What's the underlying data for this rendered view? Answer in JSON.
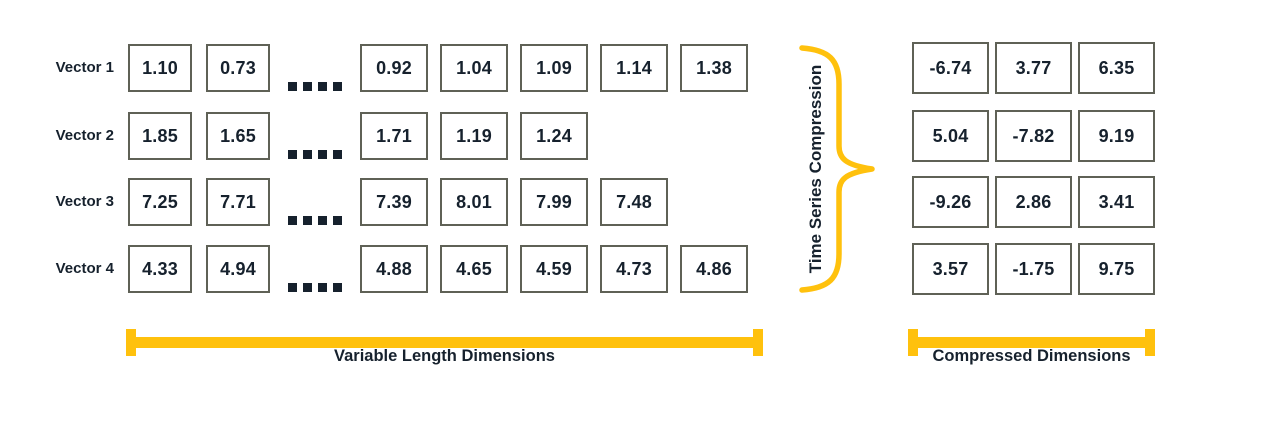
{
  "diagram": {
    "vectors": [
      {
        "label": "Vector 1",
        "head": [
          "1.10",
          "0.73"
        ],
        "tail": [
          "0.92",
          "1.04",
          "1.09",
          "1.14",
          "1.38"
        ],
        "compressed": [
          "-6.74",
          "3.77",
          "6.35"
        ]
      },
      {
        "label": "Vector 2",
        "head": [
          "1.85",
          "1.65"
        ],
        "tail": [
          "1.71",
          "1.19",
          "1.24"
        ],
        "compressed": [
          "5.04",
          "-7.82",
          "9.19"
        ]
      },
      {
        "label": "Vector 3",
        "head": [
          "7.25",
          "7.71"
        ],
        "tail": [
          "7.39",
          "8.01",
          "7.99",
          "7.48"
        ],
        "compressed": [
          "-9.26",
          "2.86",
          "3.41"
        ]
      },
      {
        "label": "Vector 4",
        "head": [
          "4.33",
          "4.94"
        ],
        "tail": [
          "4.88",
          "4.65",
          "4.59",
          "4.73",
          "4.86"
        ],
        "compressed": [
          "3.57",
          "-1.75",
          "9.75"
        ]
      }
    ],
    "brace_label": "Time Series Compression",
    "left_bracket_label": "Variable Length Dimensions",
    "right_bracket_label": "Compressed Dimensions",
    "colors": {
      "accent": "#FFC10D",
      "text": "#16212D",
      "box_border": "#5F6156"
    }
  }
}
